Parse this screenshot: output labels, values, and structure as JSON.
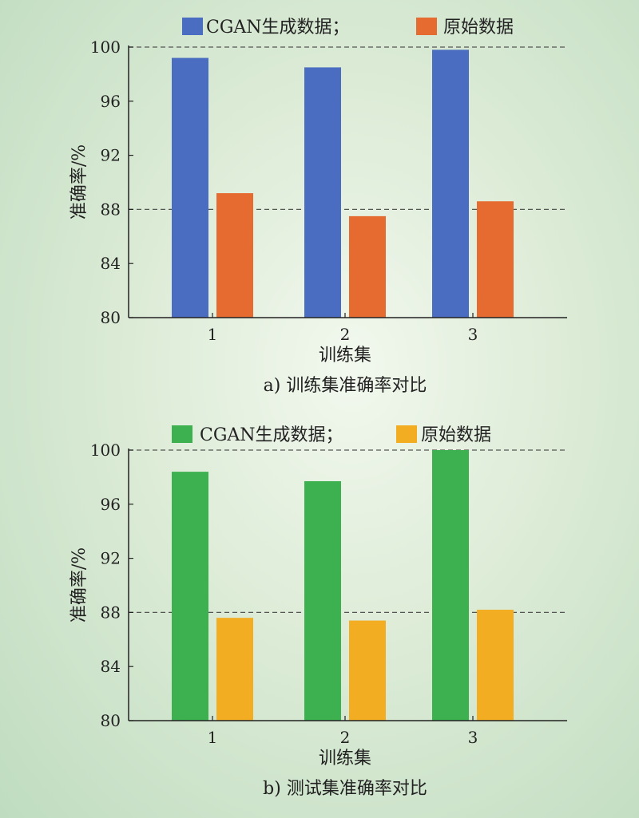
{
  "chart_data": [
    {
      "type": "bar",
      "caption": "a) 训练集准确率对比",
      "xlabel": "训练集",
      "ylabel": "准确率/%",
      "categories": [
        "1",
        "2",
        "3"
      ],
      "ylim": [
        80,
        100
      ],
      "yticks": [
        "80",
        "84",
        "88",
        "92",
        "96",
        "100"
      ],
      "gridlines": [
        88,
        100
      ],
      "legend_position": "top",
      "series": [
        {
          "name": "CGAN生成数据；",
          "color": "#4a6cc1",
          "values": [
            99.2,
            98.5,
            99.8
          ]
        },
        {
          "name": "原始数据",
          "color": "#e56b30",
          "values": [
            89.2,
            87.5,
            88.6
          ]
        }
      ]
    },
    {
      "type": "bar",
      "caption": "b) 测试集准确率对比",
      "xlabel": "训练集",
      "ylabel": "准确率/%",
      "categories": [
        "1",
        "2",
        "3"
      ],
      "ylim": [
        80,
        100
      ],
      "yticks": [
        "80",
        "84",
        "88",
        "92",
        "96",
        "100"
      ],
      "gridlines": [
        88,
        100
      ],
      "legend_position": "top",
      "series": [
        {
          "name": "CGAN生成数据；",
          "color": "#3db04f",
          "values": [
            98.4,
            97.7,
            100.0
          ]
        },
        {
          "name": "原始数据",
          "color": "#f2ad22",
          "values": [
            87.6,
            87.4,
            88.2
          ]
        }
      ]
    }
  ]
}
